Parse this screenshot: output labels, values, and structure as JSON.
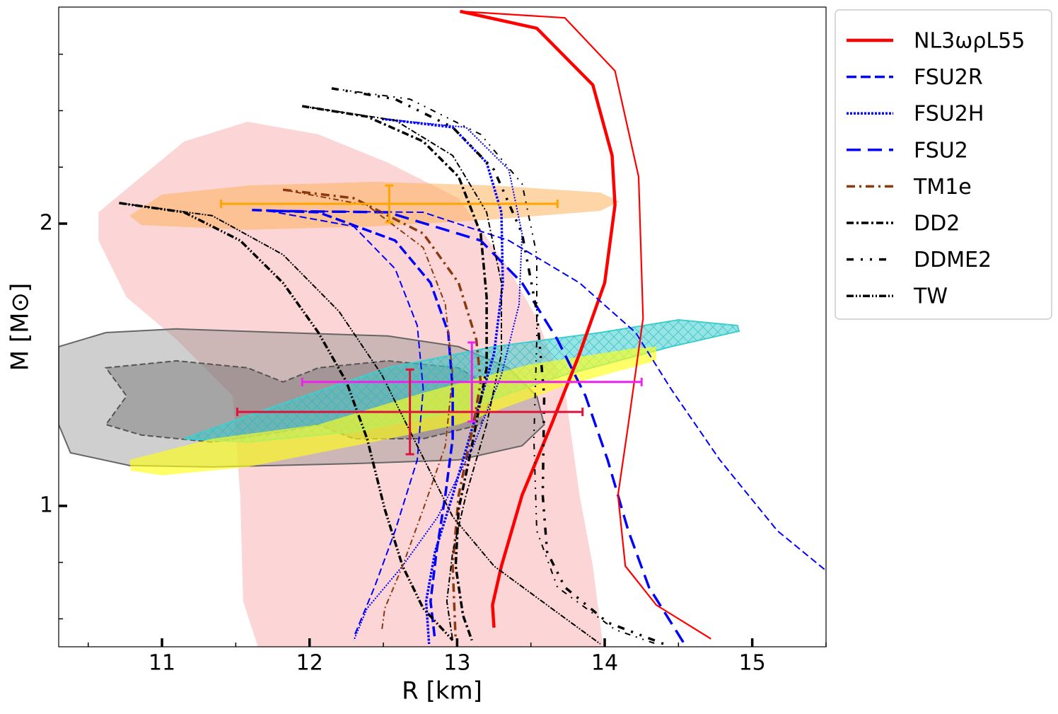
{
  "chart_data": {
    "type": "line",
    "xlabel": "R [km]",
    "ylabel": "M [M⊙]",
    "xlim": [
      10.3,
      15.5
    ],
    "ylim": [
      0.501,
      2.767
    ],
    "xticks": [
      11,
      12,
      13,
      14,
      15
    ],
    "yticks": [
      1,
      2
    ],
    "xminorticks": [
      10.5,
      11.5,
      12.5,
      13.5,
      14.5,
      15.5
    ],
    "yminorticks": [
      0.6,
      0.8,
      2.2,
      2.4,
      2.6
    ],
    "legend": "upper right outside",
    "series": [
      {
        "name": "NL3ωρL55",
        "color": "#ff0000",
        "dash": "",
        "width": 4.5,
        "x": [
          13.02,
          13.54,
          13.92,
          14.05,
          14.07,
          14.0,
          13.83,
          13.64,
          13.44,
          13.3,
          13.24,
          13.25
        ],
        "values": [
          2.752,
          2.692,
          2.491,
          2.241,
          2.066,
          1.79,
          1.539,
          1.289,
          1.038,
          0.787,
          0.649,
          0.569
        ]
      },
      {
        "name": "FSU2R",
        "color": "#0000ff",
        "dash": "14,6",
        "width": 3.5,
        "x": [
          11.61,
          12.06,
          12.58,
          12.82,
          12.94,
          12.97,
          12.97,
          12.92,
          12.86,
          12.82,
          12.85
        ],
        "values": [
          2.048,
          2.04,
          1.94,
          1.79,
          1.614,
          1.414,
          1.238,
          1.038,
          0.837,
          0.662,
          0.524
        ]
      },
      {
        "name": "FSU2H",
        "color": "#0000ff",
        "dash": "3,2",
        "width": 3.5,
        "x": [
          12.49,
          12.97,
          13.2,
          13.3,
          13.31,
          13.25,
          13.11,
          12.97,
          12.85,
          12.79,
          12.81
        ],
        "values": [
          2.371,
          2.341,
          2.216,
          2.04,
          1.79,
          1.539,
          1.289,
          1.038,
          0.837,
          0.662,
          0.511
        ]
      },
      {
        "name": "FSU2",
        "color": "#0000ff",
        "dash": "20,10",
        "width": 3.5,
        "x": [
          11.72,
          12.53,
          13.16,
          13.44,
          13.68,
          13.87,
          14.02,
          14.16,
          14.3,
          14.54
        ],
        "values": [
          2.045,
          2.04,
          1.94,
          1.79,
          1.589,
          1.389,
          1.163,
          0.912,
          0.712,
          0.511
        ]
      },
      {
        "name": "TM1e",
        "color": "#8b3a0f",
        "dash": "12,6,3,6",
        "width": 3.5,
        "x": [
          11.82,
          12.3,
          12.77,
          13.01,
          13.13,
          13.16,
          13.11,
          13.01,
          12.97,
          12.99
        ],
        "values": [
          2.12,
          2.09,
          1.965,
          1.79,
          1.589,
          1.439,
          1.289,
          1.038,
          0.787,
          0.524
        ]
      },
      {
        "name": "DD2",
        "color": "#000000",
        "dash": "10,4,3,4",
        "width": 3.5,
        "x": [
          11.95,
          12.39,
          12.77,
          13.01,
          13.16,
          13.2,
          13.2,
          13.11,
          13.01,
          12.99,
          13.04,
          13.1
        ],
        "values": [
          2.416,
          2.379,
          2.291,
          2.166,
          1.965,
          1.739,
          1.489,
          1.238,
          0.988,
          0.787,
          0.612,
          0.524
        ]
      },
      {
        "name": "DDME2",
        "color": "#000000",
        "dash": "10,10,3,10,3,10",
        "width": 3.5,
        "x": [
          12.15,
          12.58,
          12.97,
          13.25,
          13.44,
          13.54,
          13.59,
          13.58,
          13.61,
          13.73,
          14.02,
          14.4
        ],
        "values": [
          2.479,
          2.441,
          2.341,
          2.191,
          1.965,
          1.689,
          1.389,
          1.038,
          0.837,
          0.712,
          0.587,
          0.511
        ]
      },
      {
        "name": "TW",
        "color": "#000000",
        "dash": "10,3,2,3,2,3",
        "width": 3.5,
        "x": [
          10.71,
          11.15,
          11.53,
          11.82,
          12.06,
          12.25,
          12.39,
          12.51,
          12.63,
          12.77,
          12.97
        ],
        "values": [
          2.073,
          2.04,
          1.94,
          1.79,
          1.614,
          1.439,
          1.238,
          0.988,
          0.787,
          0.637,
          0.524
        ]
      },
      {
        "color": "#ff0000",
        "dash": "",
        "width": 2.2,
        "x": [
          13.02,
          13.73,
          14.07,
          14.23,
          14.26,
          14.16,
          14.09,
          14.14,
          14.35,
          14.72
        ],
        "values": [
          2.752,
          2.729,
          2.541,
          2.166,
          1.664,
          1.288,
          1.038,
          0.787,
          0.649,
          0.529
        ]
      },
      {
        "color": "#0000ff",
        "dash": "10,5",
        "width": 2,
        "x": [
          11.72,
          12.3,
          12.58,
          12.73,
          12.77,
          12.73,
          12.58,
          12.44,
          12.3
        ],
        "values": [
          2.045,
          1.99,
          1.84,
          1.639,
          1.414,
          1.163,
          0.912,
          0.712,
          0.536
        ]
      },
      {
        "color": "#0000ff",
        "dash": "2,2",
        "width": 2,
        "x": [
          12.49,
          13.06,
          13.35,
          13.44,
          13.42,
          13.3,
          13.11,
          12.87,
          12.63,
          12.39,
          12.3
        ],
        "values": [
          2.371,
          2.341,
          2.191,
          1.965,
          1.714,
          1.464,
          1.213,
          0.962,
          0.787,
          0.637,
          0.524
        ]
      },
      {
        "color": "#0000ff",
        "dash": "10,5",
        "width": 2,
        "x": [
          11.72,
          12.77,
          13.35,
          13.83,
          14.21,
          14.45,
          14.78,
          15.17,
          15.49
        ],
        "values": [
          2.045,
          2.04,
          1.94,
          1.79,
          1.614,
          1.414,
          1.163,
          0.912,
          0.775
        ]
      },
      {
        "color": "#8b3a0f",
        "dash": "8,4,2,4",
        "width": 2,
        "x": [
          11.82,
          12.39,
          12.77,
          12.92,
          12.97,
          12.92,
          12.77,
          12.63,
          12.51,
          12.49
        ],
        "values": [
          2.12,
          2.065,
          1.915,
          1.714,
          1.464,
          1.213,
          0.988,
          0.787,
          0.637,
          0.561
        ]
      },
      {
        "color": "#000000",
        "dash": "8,3,2,3",
        "width": 2,
        "x": [
          11.95,
          12.58,
          12.97,
          13.2,
          13.3,
          13.3,
          13.2,
          13.06,
          12.97,
          12.93,
          12.97
        ],
        "values": [
          2.416,
          2.366,
          2.241,
          2.04,
          1.79,
          1.539,
          1.289,
          1.038,
          0.837,
          0.662,
          0.524
        ]
      },
      {
        "color": "#000000",
        "dash": "8,8,2,8,2,8",
        "width": 2,
        "x": [
          12.15,
          12.68,
          13.16,
          13.44,
          13.54,
          13.54,
          13.52,
          13.54,
          13.68,
          14.07,
          14.35
        ],
        "values": [
          2.479,
          2.441,
          2.316,
          2.141,
          1.89,
          1.589,
          1.238,
          0.912,
          0.712,
          0.562,
          0.511
        ]
      },
      {
        "color": "#000000",
        "dash": "8,2,2,2,2,2",
        "width": 2,
        "x": [
          10.71,
          11.34,
          11.82,
          12.2,
          12.49,
          12.73,
          12.97,
          13.25,
          13.64,
          13.97
        ],
        "values": [
          2.073,
          2.028,
          1.89,
          1.689,
          1.464,
          1.213,
          0.962,
          0.787,
          0.637,
          0.511
        ]
      }
    ],
    "regions": [
      {
        "color": "#fcd6d6",
        "opacity": 1,
        "x": [
          10.57,
          10.86,
          11.15,
          11.58,
          12.06,
          12.53,
          13.01,
          13.35,
          13.54,
          13.73,
          13.83,
          13.92,
          13.99,
          11.65,
          11.55,
          11.53,
          11.48,
          11.1,
          10.76,
          10.57
        ],
        "y": [
          2.04,
          2.166,
          2.291,
          2.361,
          2.316,
          2.216,
          2.09,
          1.84,
          1.664,
          1.414,
          1.038,
          0.787,
          0.501,
          0.501,
          0.662,
          1.038,
          1.389,
          1.589,
          1.739,
          1.94
        ]
      },
      {
        "color": "#fdb25c",
        "opacity": 0.55,
        "x": [
          10.78,
          11.0,
          11.58,
          12.44,
          13.25,
          13.97,
          14.1,
          13.97,
          13.25,
          12.44,
          11.58,
          10.86
        ],
        "y": [
          2.028,
          2.103,
          2.135,
          2.148,
          2.135,
          2.11,
          2.078,
          2.045,
          2.015,
          1.99,
          1.978,
          1.995
        ]
      },
      {
        "color": "#888888",
        "opacity": 0.4,
        "edge": "#666666",
        "x": [
          10.3,
          10.62,
          11.1,
          11.82,
          12.53,
          13.01,
          13.35,
          13.54,
          13.59,
          13.44,
          13.01,
          12.3,
          11.34,
          10.78,
          10.38,
          10.3
        ],
        "y": [
          1.564,
          1.614,
          1.627,
          1.614,
          1.602,
          1.564,
          1.489,
          1.389,
          1.288,
          1.213,
          1.163,
          1.15,
          1.138,
          1.143,
          1.188,
          1.288
        ]
      },
      {
        "color": "#666666",
        "opacity": 0.4,
        "edge": "#555555",
        "dash": "8,4",
        "x": [
          10.62,
          11.1,
          11.58,
          11.82,
          12.06,
          12.53,
          13.01,
          13.25,
          13.16,
          12.77,
          12.3,
          12.06,
          11.82,
          11.34,
          10.86,
          10.62,
          10.76
        ],
        "y": [
          1.489,
          1.514,
          1.489,
          1.439,
          1.489,
          1.514,
          1.489,
          1.414,
          1.288,
          1.238,
          1.238,
          1.288,
          1.263,
          1.226,
          1.251,
          1.288,
          1.389
        ]
      },
      {
        "color": "#3fcfcf",
        "opacity": 0.55,
        "edge": "#3fcfcf",
        "x": [
          11.15,
          11.82,
          12.53,
          13.25,
          13.97,
          14.5,
          14.9,
          14.91,
          14.45,
          13.73,
          13.01,
          12.3,
          11.58
        ],
        "y": [
          1.238,
          1.363,
          1.489,
          1.564,
          1.614,
          1.659,
          1.639,
          1.619,
          1.564,
          1.464,
          1.338,
          1.263,
          1.226
        ]
      },
      {
        "color": "#ffff1a",
        "opacity": 0.65,
        "x": [
          10.78,
          11.34,
          12.06,
          12.77,
          13.49,
          14.21,
          14.35,
          14.35,
          13.73,
          13.01,
          12.3,
          11.58,
          11.0,
          10.79
        ],
        "y": [
          1.163,
          1.238,
          1.288,
          1.401,
          1.501,
          1.559,
          1.564,
          1.514,
          1.426,
          1.288,
          1.213,
          1.138,
          1.108,
          1.125
        ]
      }
    ],
    "errorbars": [
      {
        "color": "#ffa500",
        "x": 12.54,
        "y": 2.07,
        "xerr": 1.14,
        "yerr": 0.065
      },
      {
        "color": "#ee22ee",
        "x": 13.1,
        "y": 1.439,
        "xerr": 1.15,
        "yerr": 0.14
      },
      {
        "color": "#dc143c",
        "x": 12.68,
        "y": 1.333,
        "xerr": 1.17,
        "yerr": 0.15
      }
    ]
  }
}
